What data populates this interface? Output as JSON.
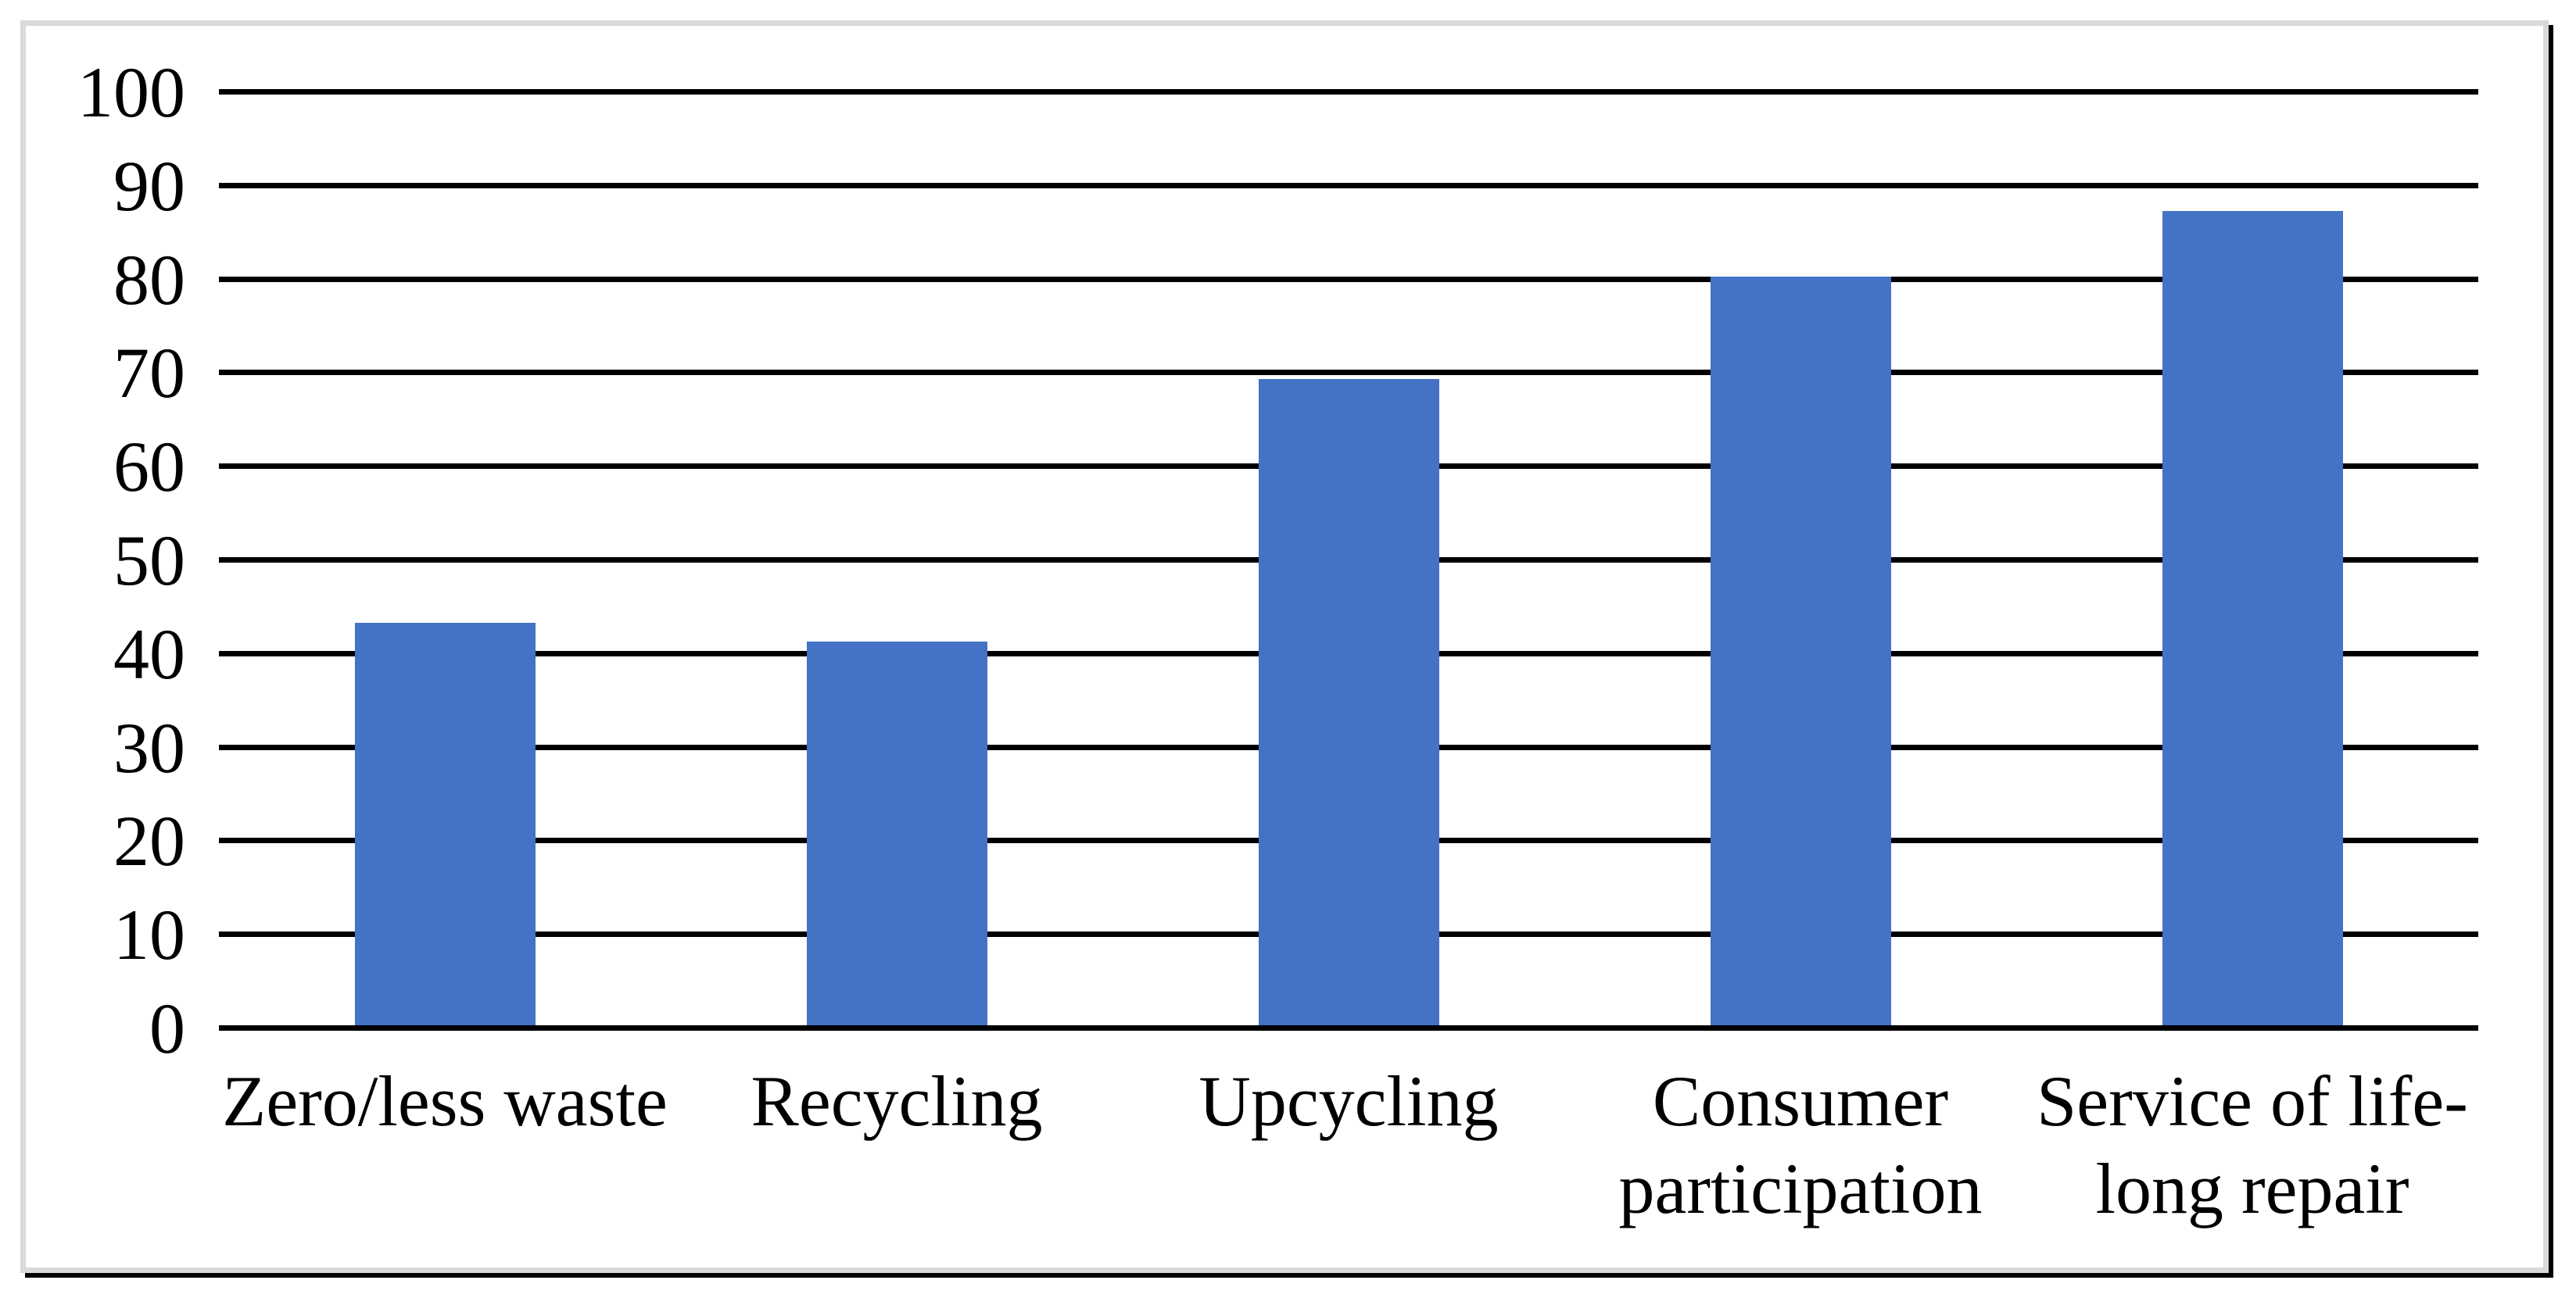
{
  "figure": {
    "description": "Framed bar chart figure with no title, no legend, black horizontal gridlines and blue bars"
  },
  "chart_data": {
    "type": "bar",
    "title": "",
    "xlabel": "",
    "ylabel": "",
    "categories": [
      "Zero/less waste",
      "Recycling",
      "Upcycling",
      "Consumer participation",
      "Service of life-long repair"
    ],
    "category_lines": [
      [
        "Zero/less waste"
      ],
      [
        "Recycling"
      ],
      [
        "Upcycling"
      ],
      [
        "Consumer",
        "participation"
      ],
      [
        "Service of life-",
        "long repair"
      ]
    ],
    "values": [
      43,
      41,
      69,
      80,
      87
    ],
    "ylim": [
      0,
      100
    ],
    "ytick_step": 10,
    "ytick_labels": [
      "0",
      "10",
      "20",
      "30",
      "40",
      "50",
      "60",
      "70",
      "80",
      "90",
      "100"
    ],
    "grid": "horizontal",
    "legend": "none",
    "colors": {
      "bar": "#4472C4",
      "gridline": "#000000",
      "text": "#000000",
      "frame_border": "#D9D9D9",
      "frame_shadow": "#000000",
      "background": "#FFFFFF"
    }
  }
}
